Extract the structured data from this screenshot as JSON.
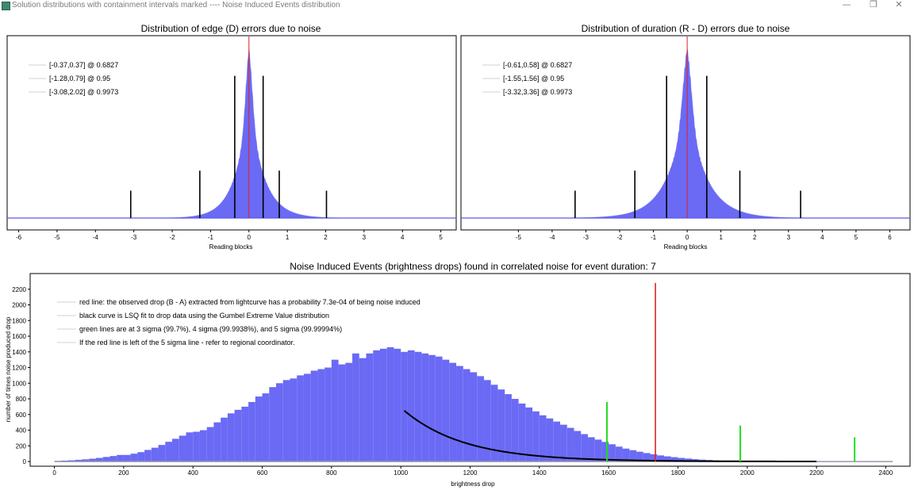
{
  "window": {
    "title": "Solution distributions with containment intervals marked ---- Noise Induced Events distribution",
    "minimize_glyph": "—",
    "maximize_glyph": "❐",
    "close_glyph": "✕"
  },
  "colors": {
    "histogram": "#6a6af5",
    "red_line": "#e22222",
    "green_line": "#22dd22",
    "fit_curve": "#000000",
    "frame": "#000000",
    "legend_swatch": "#d0d0d0"
  },
  "chart_data": [
    {
      "type": "bar",
      "title": "Distribution of edge (D) errors due to noise",
      "xlabel": "Reading blocks",
      "ylabel": "",
      "xlim": [
        -6.3,
        5.4
      ],
      "xticks": [
        -6,
        -5,
        -4,
        -3,
        -2,
        -1,
        0,
        1,
        2,
        3,
        4,
        5
      ],
      "yticks_shown": false,
      "center_line_x": 0,
      "histogram": {
        "center": 0.0,
        "peak_height": 1.0,
        "scale_left": 0.35,
        "scale_right": 0.38
      },
      "legend": [
        "[-0.37,0.37] @ 0.6827",
        "[-1.28,0.79] @ 0.95",
        "[-3.08,2.02] @ 0.9973"
      ],
      "legend_position": "top-left",
      "intervals": [
        {
          "low": -0.37,
          "high": 0.37,
          "confidence": 0.6827,
          "marker_height": 0.78
        },
        {
          "low": -1.28,
          "high": 0.79,
          "confidence": 0.95,
          "marker_height": 0.26
        },
        {
          "low": -3.08,
          "high": 2.02,
          "confidence": 0.9973,
          "marker_height": 0.15
        }
      ]
    },
    {
      "type": "bar",
      "title": "Distribution of duration (R - D) errors due to noise",
      "xlabel": "Reading blocks",
      "ylabel": "",
      "xlim": [
        -6.7,
        6.6
      ],
      "xticks": [
        -5,
        -4,
        -3,
        -2,
        -1,
        0,
        1,
        2,
        3,
        4,
        5,
        6
      ],
      "yticks_shown": false,
      "center_line_x": 0,
      "histogram": {
        "center": 0.0,
        "peak_height": 1.0,
        "scale_left": 0.55,
        "scale_right": 0.55
      },
      "legend": [
        "[-0.61,0.58] @ 0.6827",
        "[-1.55,1.56] @ 0.95",
        "[-3.32,3.36] @ 0.9973"
      ],
      "legend_position": "top-left",
      "intervals": [
        {
          "low": -0.61,
          "high": 0.58,
          "confidence": 0.6827,
          "marker_height": 0.78
        },
        {
          "low": -1.55,
          "high": 1.56,
          "confidence": 0.95,
          "marker_height": 0.26
        },
        {
          "low": -3.32,
          "high": 3.36,
          "confidence": 0.9973,
          "marker_height": 0.15
        }
      ]
    },
    {
      "type": "bar",
      "title": "Noise Induced Events (brightness drops) found in correlated noise for event duration: 7",
      "xlabel": "brightness drop",
      "ylabel": "number of times noise produced drop",
      "xlim": [
        -70,
        2470
      ],
      "ylim": [
        -60,
        2400
      ],
      "xticks": [
        0,
        200,
        400,
        600,
        800,
        1000,
        1200,
        1400,
        1600,
        1800,
        2000,
        2200,
        2400
      ],
      "yticks": [
        0,
        200,
        400,
        600,
        800,
        1000,
        1200,
        1400,
        1600,
        1800,
        2000,
        2200
      ],
      "bin_width": 20,
      "bins_start": 0,
      "counts": [
        8,
        12,
        16,
        22,
        28,
        36,
        46,
        58,
        70,
        84,
        84,
        100,
        120,
        148,
        176,
        212,
        252,
        290,
        330,
        372,
        380,
        400,
        440,
        500,
        560,
        615,
        660,
        700,
        760,
        830,
        870,
        950,
        1000,
        1040,
        1060,
        1100,
        1120,
        1160,
        1180,
        1200,
        1300,
        1240,
        1260,
        1380,
        1320,
        1380,
        1420,
        1440,
        1460,
        1440,
        1400,
        1420,
        1400,
        1380,
        1360,
        1340,
        1300,
        1260,
        1220,
        1180,
        1140,
        1090,
        1040,
        980,
        920,
        860,
        800,
        740,
        690,
        640,
        590,
        550,
        510,
        470,
        430,
        390,
        350,
        310,
        280,
        250,
        220,
        190,
        165,
        145,
        125,
        108,
        92,
        78,
        66,
        56,
        46,
        38,
        30,
        24,
        19,
        15,
        11,
        8,
        6,
        4,
        3,
        2,
        2,
        1,
        1,
        1,
        0,
        0,
        0
      ],
      "fit_curve": {
        "x_start": 1010,
        "x_end": 2200,
        "y_at_start": 650,
        "decay": 175
      },
      "fit_extension_end": 2420,
      "red_line": {
        "x": 1735,
        "height": 2280
      },
      "green_lines": [
        {
          "x": 1595,
          "height": 760,
          "label": "3 sigma"
        },
        {
          "x": 1980,
          "height": 460,
          "label": "4 sigma"
        },
        {
          "x": 2310,
          "height": 310,
          "label": "5 sigma"
        }
      ],
      "legend": [
        "red line: the observed drop (B - A) extracted from lightcurve has a probability 7.3e-04 of being noise induced",
        "black curve is LSQ fit to drop data using the Gumbel Extreme Value distribution",
        "green lines are at 3 sigma (99.7%), 4 sigma (99.9938%), and 5 sigma (99.99994%)",
        "If the red line is left of the 5 sigma line - refer to regional coordinator."
      ],
      "legend_position": "top-left"
    }
  ]
}
